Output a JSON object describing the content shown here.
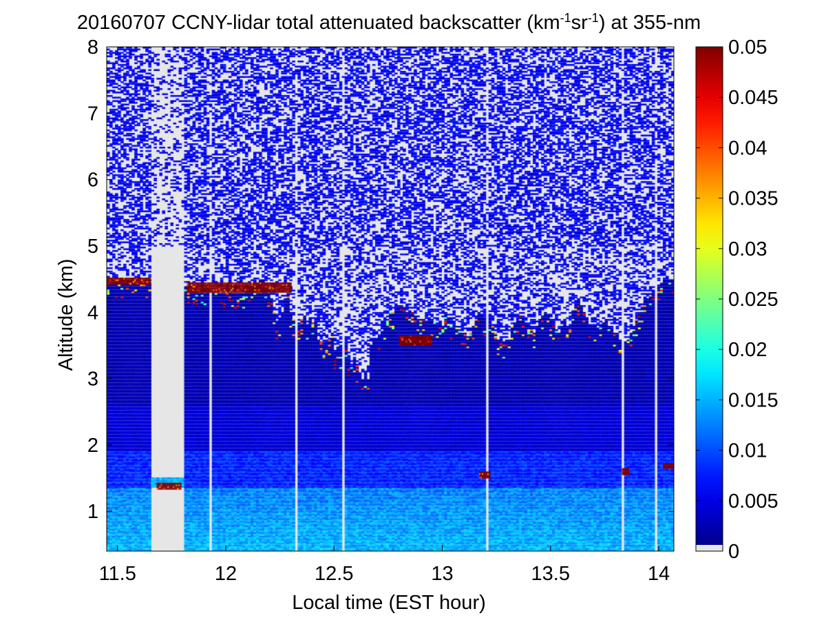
{
  "chart_data": {
    "type": "heatmap",
    "title_parts": {
      "prefix": "20160707 CCNY-lidar total attenuated backscatter (km",
      "sup1": "-1",
      "mid": "sr",
      "sup2": "-1",
      "suffix": ") at 355-nm"
    },
    "xlabel": "Local time (EST hour)",
    "ylabel": "Altitude (km)",
    "xlim": [
      11.45,
      14.07
    ],
    "ylim": [
      0.4,
      8
    ],
    "x_ticks": [
      11.5,
      12,
      12.5,
      13,
      13.5,
      14
    ],
    "x_tick_labels": [
      "11.5",
      "12",
      "12.5",
      "13",
      "13.5",
      "14"
    ],
    "y_ticks": [
      1,
      2,
      3,
      4,
      5,
      6,
      7,
      8
    ],
    "y_tick_labels": [
      "1",
      "2",
      "3",
      "4",
      "5",
      "6",
      "7",
      "8"
    ],
    "colorbar": {
      "range": [
        0,
        0.05
      ],
      "ticks": [
        0,
        0.005,
        0.01,
        0.015,
        0.02,
        0.025,
        0.03,
        0.035,
        0.04,
        0.045,
        0.05
      ],
      "tick_labels": [
        "0",
        "0.005",
        "0.01",
        "0.015",
        "0.02",
        "0.025",
        "0.03",
        "0.035",
        "0.04",
        "0.045",
        "0.05"
      ],
      "colormap": "jet"
    },
    "no_data_color": "#e6e6e6",
    "signal_top_km": [
      4.5,
      4.45,
      4.45,
      4.45,
      4.45,
      4.45,
      4.45,
      4.45,
      4.45,
      4.45,
      4.45,
      4.45,
      4.45,
      4.45,
      4.45,
      4.45,
      0,
      0,
      0,
      0,
      0,
      0,
      0,
      0,
      0,
      0,
      4.4,
      4.4,
      4.38,
      4.38,
      4.35,
      4.35,
      4.35,
      4.35,
      4.35,
      4.35,
      4.35,
      4.35,
      4.35,
      4.35,
      4.3,
      4.3,
      4.3,
      4.3,
      4.3,
      4.3,
      4.3,
      4.3,
      4.3,
      4.3,
      4.35,
      4.38,
      4.4,
      4.45,
      4.45,
      4.5,
      4.5,
      4.45,
      4.3,
      4.2,
      4.0,
      3.85,
      3.9,
      4.0,
      4.2,
      4.3,
      4.0,
      3.9,
      3.85,
      3.8,
      3.9,
      3.95,
      3.8,
      3.9,
      3.85,
      3.85,
      3.6,
      3.55,
      3.5,
      3.55,
      3.6,
      3.7,
      3.4,
      3.5,
      3.4,
      3.45,
      3.5,
      3.3,
      3.2,
      3.3,
      3.2,
      3.1,
      3.0,
      3.1,
      3.0,
      3.5,
      3.6,
      3.6,
      3.65,
      3.7,
      3.85,
      3.9,
      4.0,
      4.0,
      4.05,
      4.1,
      4.1,
      4.05,
      4.0,
      4.0,
      4.0,
      3.95,
      3.9,
      3.9,
      3.9,
      3.85,
      3.9,
      3.9,
      3.85,
      3.8,
      3.85,
      3.8,
      4.0,
      3.9,
      3.8,
      3.8,
      3.8,
      3.75,
      3.7,
      3.7,
      3.65,
      3.7,
      3.8,
      3.9,
      4.0,
      3.95,
      3.9,
      3.85,
      3.8,
      3.8,
      3.7,
      3.6,
      3.6,
      3.55,
      3.6,
      3.6,
      3.8,
      3.85,
      3.9,
      3.95,
      3.9,
      3.85,
      3.8,
      3.8,
      3.7,
      3.8,
      3.9,
      3.95,
      4.0,
      3.95,
      3.9,
      3.8,
      3.75,
      3.7,
      3.8,
      3.85,
      3.8,
      3.8,
      4.0,
      4.1,
      4.2,
      4.1,
      4.0,
      3.9,
      3.8,
      3.8,
      3.8,
      3.75,
      3.8,
      3.85,
      3.9,
      3.8,
      3.75,
      3.7,
      3.65,
      3.6,
      3.6,
      3.55,
      3.6,
      3.7,
      3.8,
      3.9,
      4.0,
      4.1,
      4.2,
      4.2,
      4.25,
      4.3,
      4.35,
      4.4,
      4.45,
      4.5,
      4.5,
      4.5,
      4.5
    ],
    "gap_ranges_hours": [
      [
        11.651,
        11.805
      ],
      [
        11.928,
        11.94
      ],
      [
        12.318,
        12.33
      ],
      [
        12.538,
        12.55
      ],
      [
        13.195,
        13.217
      ],
      [
        13.827,
        13.843
      ],
      [
        13.985,
        13.998
      ]
    ],
    "bright_layers": [
      {
        "x": [
          11.45,
          11.65
        ],
        "alt_km": [
          4.42,
          4.52
        ]
      },
      {
        "x": [
          11.82,
          12.3
        ],
        "alt_km": [
          4.3,
          4.45
        ]
      },
      {
        "x": [
          11.68,
          11.79
        ],
        "alt_km": [
          1.35,
          1.43
        ]
      },
      {
        "x": [
          12.8,
          12.95
        ],
        "alt_km": [
          3.5,
          3.65
        ]
      },
      {
        "x": [
          13.83,
          13.86
        ],
        "alt_km": [
          1.55,
          1.65
        ]
      },
      {
        "x": [
          13.17,
          13.22
        ],
        "alt_km": [
          1.5,
          1.6
        ]
      },
      {
        "x": [
          14.02,
          14.07
        ],
        "alt_km": [
          1.65,
          1.72
        ]
      }
    ]
  }
}
